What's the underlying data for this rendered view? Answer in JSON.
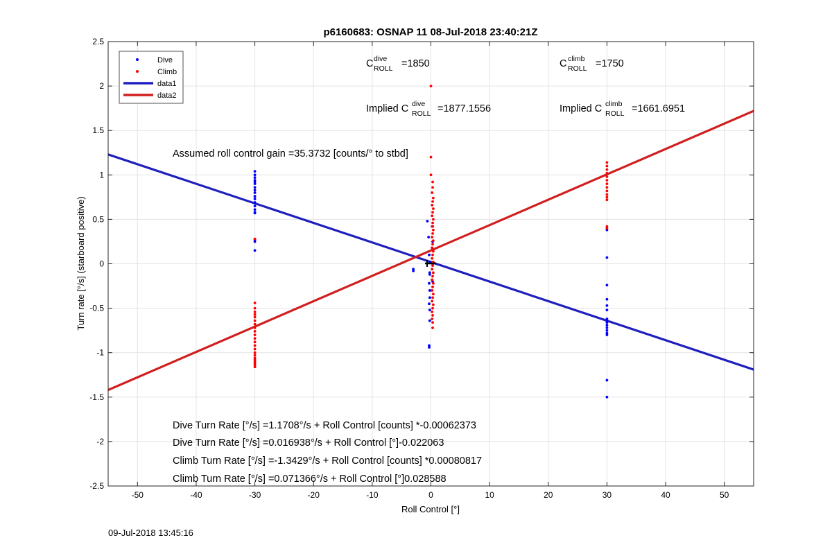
{
  "chart_data": {
    "type": "scatter",
    "title": "p6160683: OSNAP 11 08-Jul-2018 23:40:21Z",
    "xlabel": "Roll Control [°]",
    "ylabel": "Turn rate [°/s] (starboard positive)",
    "xlim": [
      -55,
      55
    ],
    "ylim": [
      -2.5,
      2.5
    ],
    "xticks": [
      -50,
      -40,
      -30,
      -20,
      -10,
      0,
      10,
      20,
      30,
      40,
      50
    ],
    "yticks": [
      -2.5,
      -2,
      -1.5,
      -1,
      -0.5,
      0,
      0.5,
      1,
      1.5,
      2,
      2.5
    ],
    "xtick_labels": [
      "-50",
      "-40",
      "-30",
      "-20",
      "-10",
      "0",
      "10",
      "20",
      "30",
      "40",
      "50"
    ],
    "ytick_labels": [
      "-2.5",
      "-2",
      "-1.5",
      "-1",
      "-0.5",
      "0",
      "0.5",
      "1",
      "1.5",
      "2",
      "2.5"
    ],
    "grid": true,
    "legend_position": "top-left",
    "colors": {
      "dive": "#0000ff",
      "climb": "#ff0000",
      "data1": "#1f1fbf",
      "data2": "#d11f1f"
    },
    "series": [
      {
        "name": "Dive",
        "kind": "points",
        "color": "#0000ff",
        "points": [
          [
            -30,
            1.04
          ],
          [
            -30,
            1.0
          ],
          [
            -30,
            0.97
          ],
          [
            -30,
            0.94
          ],
          [
            -30,
            0.92
          ],
          [
            -30,
            0.9
          ],
          [
            -30,
            0.86
          ],
          [
            -30,
            0.83
          ],
          [
            -30,
            0.8
          ],
          [
            -30,
            0.76
          ],
          [
            -30,
            0.73
          ],
          [
            -30,
            0.69
          ],
          [
            -30,
            0.65
          ],
          [
            -30,
            0.61
          ],
          [
            -30,
            0.58
          ],
          [
            -30,
            0.57
          ],
          [
            -30,
            0.27
          ],
          [
            -30,
            0.25
          ],
          [
            -30,
            0.15
          ],
          [
            30,
            0.38
          ],
          [
            30,
            0.07
          ],
          [
            30,
            -0.24
          ],
          [
            30,
            -0.4
          ],
          [
            30,
            -0.47
          ],
          [
            30,
            -0.52
          ],
          [
            30,
            -0.62
          ],
          [
            30,
            -0.64
          ],
          [
            30,
            -0.66
          ],
          [
            30,
            -0.69
          ],
          [
            30,
            -0.72
          ],
          [
            30,
            -0.75
          ],
          [
            30,
            -0.78
          ],
          [
            30,
            -0.8
          ],
          [
            30,
            -1.31
          ],
          [
            30,
            -1.5
          ],
          [
            -3,
            -0.06
          ],
          [
            -3,
            -0.08
          ],
          [
            -0.6,
            0.48
          ],
          [
            -0.4,
            0.3
          ],
          [
            -0.3,
            0.1
          ],
          [
            -0.2,
            0.02
          ],
          [
            -0.2,
            -0.1
          ],
          [
            -0.2,
            -0.12
          ],
          [
            -0.3,
            -0.22
          ],
          [
            -0.2,
            -0.3
          ],
          [
            -0.2,
            -0.38
          ],
          [
            -0.3,
            -0.45
          ],
          [
            -0.2,
            -0.52
          ],
          [
            -0.2,
            -0.64
          ],
          [
            -0.3,
            -0.92
          ],
          [
            -0.3,
            -0.94
          ],
          [
            0.3,
            0.42
          ],
          [
            0.3,
            0.25
          ],
          [
            0.3,
            0.0
          ],
          [
            0.3,
            -0.2
          ]
        ]
      },
      {
        "name": "Climb",
        "kind": "points",
        "color": "#ff0000",
        "points": [
          [
            -30,
            0.28
          ],
          [
            -30,
            -0.44
          ],
          [
            -30,
            -0.5
          ],
          [
            -30,
            -0.54
          ],
          [
            -30,
            -0.57
          ],
          [
            -30,
            -0.6
          ],
          [
            -30,
            -0.64
          ],
          [
            -30,
            -0.68
          ],
          [
            -30,
            -0.72
          ],
          [
            -30,
            -0.76
          ],
          [
            -30,
            -0.8
          ],
          [
            -30,
            -0.84
          ],
          [
            -30,
            -0.88
          ],
          [
            -30,
            -0.92
          ],
          [
            -30,
            -0.96
          ],
          [
            -30,
            -1.0
          ],
          [
            -30,
            -1.03
          ],
          [
            -30,
            -1.06
          ],
          [
            -30,
            -1.08
          ],
          [
            -30,
            -1.1
          ],
          [
            -30,
            -1.12
          ],
          [
            -30,
            -1.14
          ],
          [
            -30,
            -1.16
          ],
          [
            30,
            1.14
          ],
          [
            30,
            1.1
          ],
          [
            30,
            1.06
          ],
          [
            30,
            1.02
          ],
          [
            30,
            0.98
          ],
          [
            30,
            0.94
          ],
          [
            30,
            0.9
          ],
          [
            30,
            0.86
          ],
          [
            30,
            0.82
          ],
          [
            30,
            0.78
          ],
          [
            30,
            0.75
          ],
          [
            30,
            0.72
          ],
          [
            30,
            0.42
          ],
          [
            30,
            0.4
          ],
          [
            0,
            2.0
          ],
          [
            0,
            1.2
          ],
          [
            0,
            1.0
          ],
          [
            0.3,
            0.92
          ],
          [
            0.3,
            0.86
          ],
          [
            0.2,
            0.8
          ],
          [
            0.4,
            0.74
          ],
          [
            0.3,
            0.7
          ],
          [
            0.2,
            0.66
          ],
          [
            0.4,
            0.62
          ],
          [
            0.3,
            0.58
          ],
          [
            0.2,
            0.54
          ],
          [
            0.4,
            0.5
          ],
          [
            0.3,
            0.46
          ],
          [
            0.2,
            0.42
          ],
          [
            0.4,
            0.38
          ],
          [
            0.3,
            0.34
          ],
          [
            0.2,
            0.3
          ],
          [
            0.4,
            0.26
          ],
          [
            0.3,
            0.22
          ],
          [
            0.2,
            0.18
          ],
          [
            0.4,
            0.14
          ],
          [
            0.3,
            0.1
          ],
          [
            0.2,
            0.06
          ],
          [
            0.4,
            0.02
          ],
          [
            0.3,
            -0.02
          ],
          [
            0.2,
            -0.06
          ],
          [
            0.4,
            -0.1
          ],
          [
            0.3,
            -0.14
          ],
          [
            0.2,
            -0.18
          ],
          [
            0.4,
            -0.22
          ],
          [
            0.3,
            -0.26
          ],
          [
            0.2,
            -0.3
          ],
          [
            0.4,
            -0.34
          ],
          [
            0.3,
            -0.38
          ],
          [
            0.2,
            -0.42
          ],
          [
            0.4,
            -0.46
          ],
          [
            0.3,
            -0.5
          ],
          [
            0.2,
            -0.54
          ],
          [
            0.3,
            -0.58
          ],
          [
            0.2,
            -0.62
          ],
          [
            0.3,
            -0.66
          ],
          [
            0.3,
            -0.72
          ]
        ]
      },
      {
        "name": "data1",
        "kind": "line",
        "color": "#1f1fbf",
        "x": [
          -55,
          55
        ],
        "y": [
          1.23,
          -1.19
        ]
      },
      {
        "name": "data2",
        "kind": "line",
        "color": "#d11f1f",
        "x": [
          -55,
          55
        ],
        "y": [
          -1.42,
          1.72
        ]
      }
    ],
    "annotations": {
      "c_dive_base": "C",
      "c_dive_sup": "dive",
      "c_dive_sub": "ROLL",
      "c_dive_value": "=1850",
      "c_climb_base": "C",
      "c_climb_sup": "climb",
      "c_climb_sub": "ROLL",
      "c_climb_value": "=1750",
      "implied_dive_prefix": "Implied C",
      "implied_dive_sup": "dive",
      "implied_dive_sub": "ROLL",
      "implied_dive_value": "=1877.1556",
      "implied_climb_prefix": "Implied C",
      "implied_climb_sup": "climb",
      "implied_climb_sub": "ROLL",
      "implied_climb_value": "=1661.6951",
      "gain": "Assumed roll control gain =35.3732 [counts/° to stbd]",
      "eq_dive_counts": "Dive Turn Rate [°/s] =1.1708°/s + Roll Control [counts] *-0.00062373",
      "eq_dive_deg": "Dive Turn Rate [°/s] =0.016938°/s + Roll Control [°]-0.022063",
      "eq_climb_counts": "Climb Turn Rate [°/s] =-1.3429°/s + Roll Control [counts] *0.00080817",
      "eq_climb_deg": "Climb Turn Rate [°/s] =0.071366°/s + Roll Control [°]0.028588"
    },
    "footer_timestamp": "09-Jul-2018 13:45:16"
  }
}
